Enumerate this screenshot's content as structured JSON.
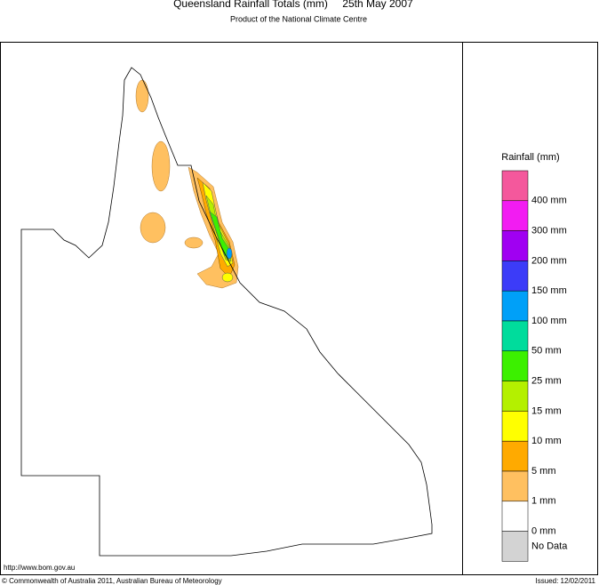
{
  "header": {
    "title": "Queensland Rainfall Totals (mm)",
    "date": "25th May 2007",
    "subtitle": "Product of the National Climate Centre"
  },
  "legend": {
    "title": "Rainfall (mm)",
    "colors": [
      "#f4589c",
      "#f21cf2",
      "#a000f2",
      "#3c3cf8",
      "#00a0f8",
      "#00dc9c",
      "#3cf000",
      "#b4f000",
      "#ffff00",
      "#ffaa00",
      "#ffc060",
      "#ffffff",
      "#d3d3d3"
    ],
    "labels": [
      "400 mm",
      "300 mm",
      "200 mm",
      "150 mm",
      "100 mm",
      "50 mm",
      "25 mm",
      "15 mm",
      "10 mm",
      "5 mm",
      "1 mm",
      "0 mm"
    ],
    "no_data": "No Data"
  },
  "footer": {
    "url": "http://www.bom.gov.au",
    "copyright": "© Commonwealth of Australia 2011, Australian Bureau of Meteorology",
    "issued": "Issued: 12/02/2011"
  }
}
